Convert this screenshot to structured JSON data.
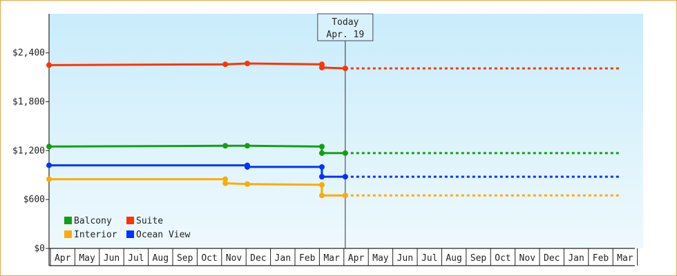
{
  "chart_data": {
    "type": "line",
    "title": "",
    "xlabel": "",
    "ylabel": "",
    "ylim": [
      0,
      2880
    ],
    "yticks": [
      {
        "value": 0,
        "label": "$0"
      },
      {
        "value": 600,
        "label": "$600"
      },
      {
        "value": 1200,
        "label": "$1,200"
      },
      {
        "value": 1800,
        "label": "$1,800"
      },
      {
        "value": 2400,
        "label": "$2,400"
      }
    ],
    "x_months": [
      "Apr",
      "May",
      "Jun",
      "Jul",
      "Aug",
      "Sep",
      "Oct",
      "Nov",
      "Dec",
      "Jan",
      "Feb",
      "Mar",
      "Apr",
      "May",
      "Jun",
      "Jul",
      "Aug",
      "Sep",
      "Oct",
      "Nov",
      "Dec",
      "Jan",
      "Feb",
      "Mar"
    ],
    "today": {
      "line1": "Today",
      "line2": "Apr. 19",
      "month_index": 12.0
    },
    "legend": {
      "placement": "bottom-left",
      "columns": 2
    },
    "background": {
      "top": "#c9ecfb",
      "bottom": "#eef9fd"
    },
    "series": [
      {
        "name": "Suite",
        "color": "#ff3300",
        "points": [
          [
            0,
            2250
          ],
          [
            7.15,
            2260
          ],
          [
            8.05,
            2270
          ],
          [
            11.1,
            2260
          ],
          [
            11.1,
            2220
          ],
          [
            12.0,
            2210
          ]
        ],
        "projection_end": 23.35,
        "projection_value": 2210
      },
      {
        "name": "Balcony",
        "color": "#11a011",
        "points": [
          [
            0,
            1250
          ],
          [
            7.15,
            1260
          ],
          [
            8.05,
            1260
          ],
          [
            11.1,
            1250
          ],
          [
            11.1,
            1170
          ],
          [
            12.0,
            1170
          ]
        ],
        "projection_end": 23.35,
        "projection_value": 1170
      },
      {
        "name": "Ocean View",
        "color": "#0033ff",
        "points": [
          [
            0,
            1020
          ],
          [
            8.05,
            1020
          ],
          [
            8.05,
            1000
          ],
          [
            11.1,
            1000
          ],
          [
            11.1,
            880
          ],
          [
            12.0,
            880
          ]
        ],
        "projection_end": 23.35,
        "projection_value": 880
      },
      {
        "name": "Interior",
        "color": "#ffaa00",
        "points": [
          [
            0,
            850
          ],
          [
            7.15,
            850
          ],
          [
            7.15,
            800
          ],
          [
            8.05,
            790
          ],
          [
            11.1,
            780
          ],
          [
            11.1,
            650
          ],
          [
            12.0,
            650
          ]
        ],
        "projection_end": 23.35,
        "projection_value": 650
      }
    ],
    "legend_order": [
      "Balcony",
      "Suite",
      "Interior",
      "Ocean View"
    ]
  }
}
